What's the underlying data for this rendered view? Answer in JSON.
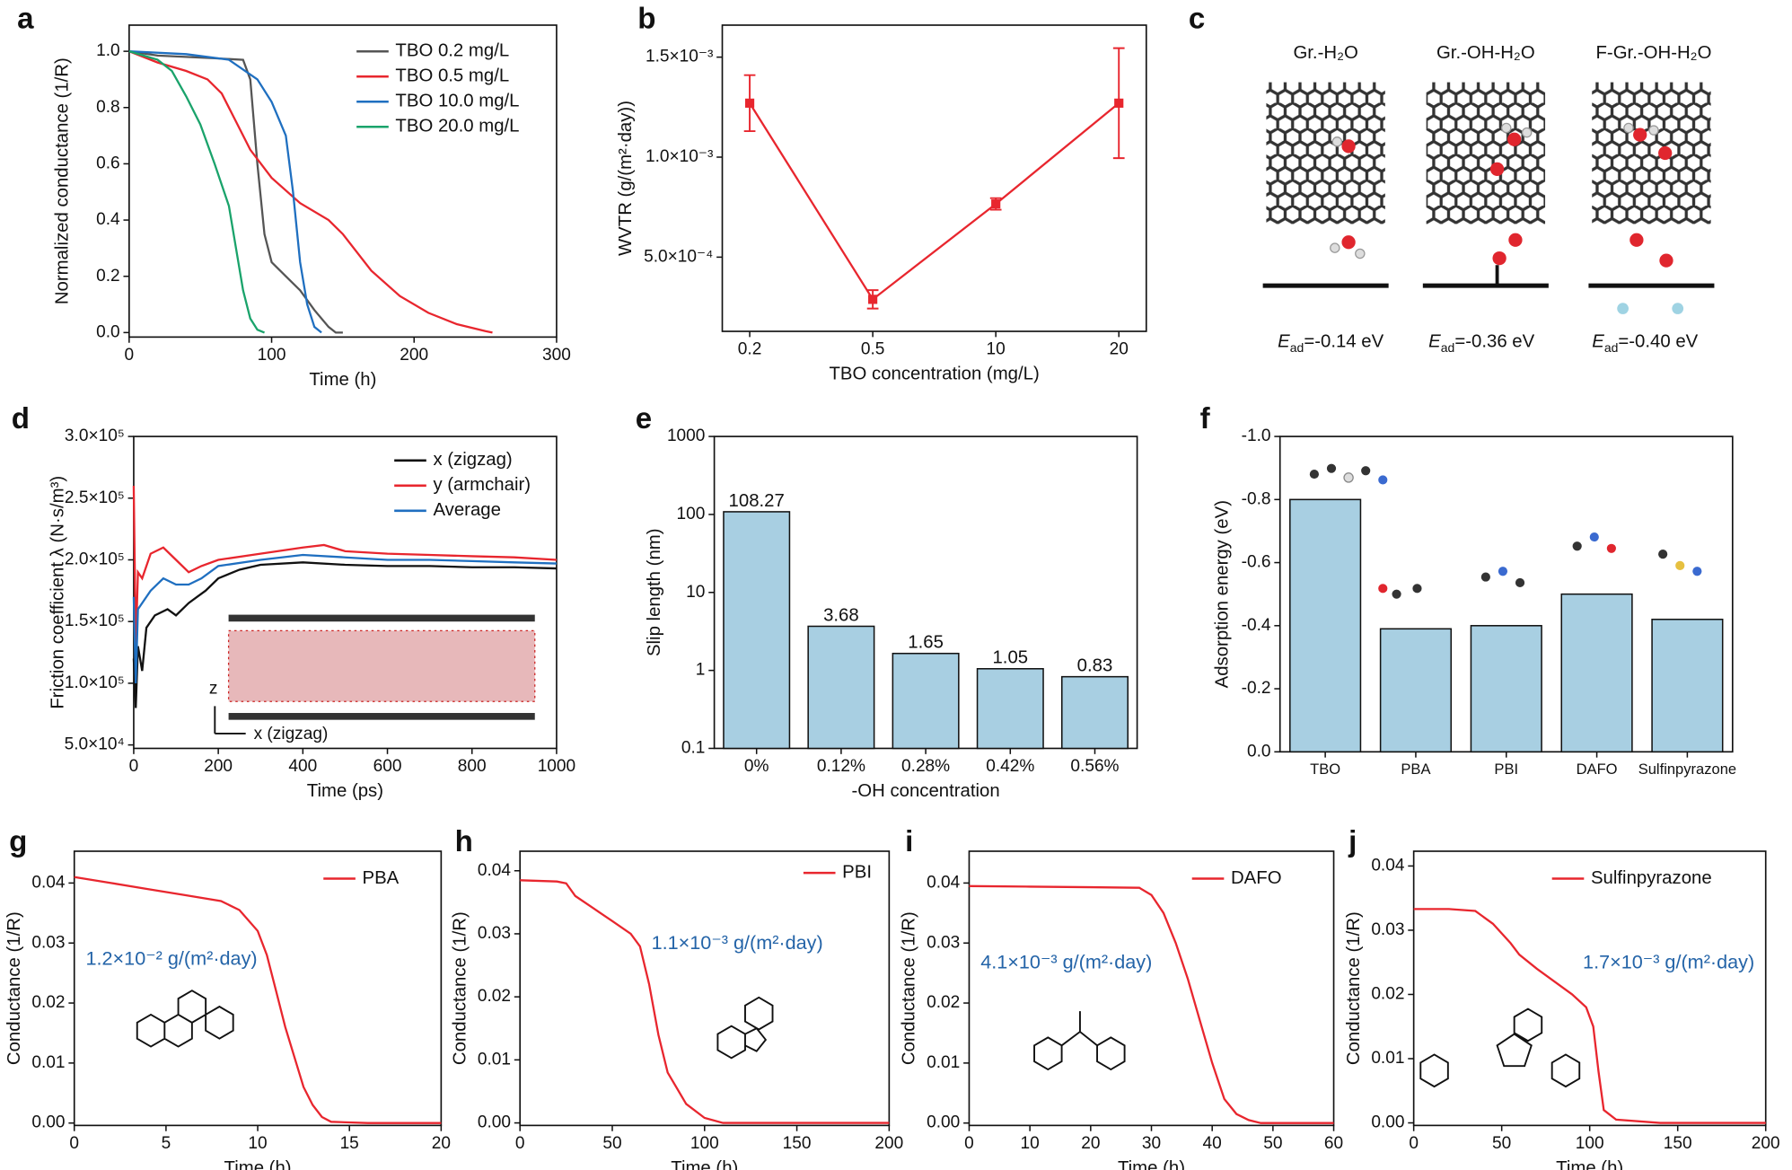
{
  "chart_data": [
    {
      "type": "line",
      "label": "a",
      "xlabel": "Time (h)",
      "ylabel": "Normalized conductance (1/R)",
      "xlim": [
        0,
        300
      ],
      "ylim": [
        -0.016,
        1.093
      ],
      "xticks": [
        0,
        100,
        200,
        300
      ],
      "yticks": [
        {
          "value": 0,
          "label": "0.0"
        },
        0.2,
        0.4,
        0.6,
        0.8,
        {
          "value": 1,
          "label": "1.0"
        }
      ],
      "legend": "upper right",
      "series": [
        {
          "name": "TBO 0.2 mg/L",
          "color": "#555555",
          "x": [
            0,
            20,
            60,
            80,
            85,
            90,
            95,
            100,
            110,
            120,
            130,
            140,
            145,
            150
          ],
          "values": [
            1.0,
            0.985,
            0.975,
            0.97,
            0.9,
            0.6,
            0.35,
            0.25,
            0.2,
            0.15,
            0.08,
            0.02,
            0.0,
            0.0
          ]
        },
        {
          "name": "TBO 0.5 mg/L",
          "color": "#e8262e",
          "x": [
            0,
            20,
            40,
            55,
            65,
            75,
            85,
            100,
            120,
            140,
            150,
            170,
            190,
            210,
            230,
            250,
            255
          ],
          "values": [
            1.0,
            0.96,
            0.93,
            0.9,
            0.85,
            0.75,
            0.65,
            0.55,
            0.46,
            0.4,
            0.35,
            0.22,
            0.13,
            0.07,
            0.03,
            0.005,
            0.0
          ]
        },
        {
          "name": "TBO 10.0 mg/L",
          "color": "#1f6fc0",
          "x": [
            0,
            40,
            70,
            90,
            100,
            110,
            115,
            120,
            125,
            130,
            135
          ],
          "values": [
            1.0,
            0.99,
            0.97,
            0.9,
            0.82,
            0.7,
            0.5,
            0.25,
            0.1,
            0.02,
            0.0
          ]
        },
        {
          "name": "TBO 20.0 mg/L",
          "color": "#1aa36b",
          "x": [
            0,
            20,
            30,
            40,
            50,
            60,
            70,
            75,
            80,
            85,
            90,
            95
          ],
          "values": [
            1.0,
            0.97,
            0.93,
            0.84,
            0.74,
            0.6,
            0.45,
            0.3,
            0.15,
            0.05,
            0.01,
            0.0
          ]
        }
      ]
    },
    {
      "type": "line",
      "label": "b",
      "xlabel": "TBO concentration (mg/L)",
      "ylabel": "WVTR (g/(m²·day))",
      "categories": [
        "0.2",
        "0.5",
        "10",
        "20"
      ],
      "color": "#e8262e",
      "values": [
        0.00127,
        0.000289,
        0.000766,
        0.00127
      ],
      "errors": [
        0.00014,
        4.6e-05,
        2.9e-05,
        0.000275
      ],
      "ylim": [
        0.000129,
        0.00166
      ],
      "yticks": [
        {
          "value": 0.0005,
          "label": "5.0×10⁻⁴"
        },
        {
          "value": 0.001,
          "label": "1.0×10⁻³"
        },
        {
          "value": 0.0015,
          "label": "1.5×10⁻³"
        }
      ]
    },
    {
      "type": "line",
      "label": "d",
      "xlabel": "Time (ps)",
      "ylabel": "Friction coefficient λ (N·s/m³)",
      "xlim": [
        0,
        1000
      ],
      "ylim": [
        47200,
        300000
      ],
      "xticks": [
        0,
        200,
        400,
        600,
        800,
        1000
      ],
      "yticks": [
        {
          "value": 50000,
          "label": "5.0×10⁴"
        },
        {
          "value": 100000,
          "label": "1.0×10⁵"
        },
        {
          "value": 150000,
          "label": "1.5×10⁵"
        },
        {
          "value": 200000,
          "label": "2.0×10⁵"
        },
        {
          "value": 250000,
          "label": "2.5×10⁵"
        },
        {
          "value": 300000,
          "label": "3.0×10⁵"
        }
      ],
      "legend": "upper right",
      "inset_labels": [
        "z",
        "x (zigzag)"
      ],
      "series": [
        {
          "name": "x (zigzag)",
          "color": "#111111",
          "x": [
            0,
            5,
            10,
            20,
            30,
            50,
            80,
            100,
            130,
            150,
            170,
            200,
            250,
            300,
            400,
            500,
            600,
            700,
            800,
            900,
            1000
          ],
          "values": [
            120000,
            80000,
            130000,
            110000,
            145000,
            155000,
            160000,
            155000,
            165000,
            170000,
            175000,
            185000,
            192000,
            196000,
            198000,
            196000,
            195000,
            195000,
            194000,
            194000,
            193000
          ]
        },
        {
          "name": "y (armchair)",
          "color": "#e8262e",
          "x": [
            0,
            5,
            10,
            20,
            40,
            70,
            100,
            130,
            160,
            200,
            300,
            400,
            450,
            500,
            600,
            700,
            800,
            900,
            1000
          ],
          "values": [
            260000,
            130000,
            190000,
            185000,
            205000,
            210000,
            200000,
            190000,
            195000,
            200000,
            205000,
            210000,
            212000,
            207000,
            205000,
            204000,
            203000,
            202000,
            200000
          ]
        },
        {
          "name": "Average",
          "color": "#1f6fc0",
          "x": [
            0,
            5,
            10,
            20,
            40,
            70,
            100,
            130,
            160,
            200,
            300,
            400,
            500,
            600,
            700,
            800,
            900,
            1000
          ],
          "values": [
            170000,
            100000,
            160000,
            165000,
            175000,
            185000,
            180000,
            180000,
            185000,
            195000,
            200000,
            204000,
            202000,
            200000,
            200000,
            199000,
            198000,
            197000
          ]
        }
      ]
    },
    {
      "type": "bar",
      "label": "e",
      "xlabel": "-OH concentration",
      "ylabel": "Slip length (nm)",
      "categories": [
        "0%",
        "0.12%",
        "0.28%",
        "0.42%",
        "0.56%"
      ],
      "values": [
        108.27,
        3.68,
        1.65,
        1.05,
        0.83
      ],
      "color": "#a8cfe2",
      "yscale": "log",
      "ylim": [
        0.1,
        1000
      ],
      "yticks": [
        0.1,
        1,
        10,
        100,
        1000
      ],
      "value_labels_shown": true
    },
    {
      "type": "bar",
      "label": "f",
      "ylabel": "Adsorption energy (eV)",
      "categories": [
        "TBO",
        "PBA",
        "PBI",
        "DAFO",
        "Sulfinpyrazone"
      ],
      "values": [
        -0.8,
        -0.39,
        -0.4,
        -0.5,
        -0.42
      ],
      "color": "#a8cfe2",
      "ylim": [
        0,
        -1
      ],
      "yticks": [
        {
          "value": 0,
          "label": "0.0"
        },
        -0.2,
        -0.4,
        -0.6,
        -0.8,
        {
          "value": -1,
          "label": "-1.0"
        }
      ]
    },
    {
      "type": "line",
      "label": "g",
      "xlabel": "Time (h)",
      "ylabel": "Conductance (1/R)",
      "xlim": [
        0,
        20
      ],
      "ylim": [
        -0.0004,
        0.0453
      ],
      "xticks": [
        0,
        5,
        10,
        15,
        20
      ],
      "yticks": [
        {
          "value": 0,
          "label": "0.00"
        },
        0.01,
        0.02,
        0.03,
        0.04
      ],
      "legend": "upper right",
      "annotation": "1.2×10⁻² g/(m²·day)",
      "series": [
        {
          "name": "PBA",
          "color": "#e8262e",
          "x": [
            0,
            2,
            4,
            6,
            8,
            9,
            10,
            10.5,
            11,
            11.5,
            12,
            12.5,
            13,
            13.5,
            14,
            16,
            20
          ],
          "values": [
            0.041,
            0.04,
            0.039,
            0.038,
            0.037,
            0.0355,
            0.032,
            0.028,
            0.022,
            0.016,
            0.011,
            0.006,
            0.003,
            0.001,
            0.0002,
            0,
            0
          ]
        }
      ]
    },
    {
      "type": "line",
      "label": "h",
      "xlabel": "Time (h)",
      "ylabel": "Conductance (1/R)",
      "xlim": [
        0,
        200
      ],
      "ylim": [
        -0.0004,
        0.0431
      ],
      "xticks": [
        0,
        50,
        100,
        150,
        200
      ],
      "yticks": [
        {
          "value": 0,
          "label": "0.00"
        },
        0.01,
        0.02,
        0.03,
        0.04
      ],
      "legend": "upper right",
      "annotation": "1.1×10⁻³ g/(m²·day)",
      "series": [
        {
          "name": "PBI",
          "color": "#e8262e",
          "x": [
            0,
            20,
            25,
            30,
            40,
            50,
            60,
            65,
            70,
            75,
            80,
            90,
            100,
            110,
            200
          ],
          "values": [
            0.0385,
            0.0383,
            0.038,
            0.036,
            0.034,
            0.032,
            0.03,
            0.028,
            0.022,
            0.014,
            0.008,
            0.003,
            0.0008,
            0,
            0
          ]
        }
      ]
    },
    {
      "type": "line",
      "label": "i",
      "xlabel": "Time (h)",
      "ylabel": "Conductance (1/R)",
      "xlim": [
        0,
        60
      ],
      "ylim": [
        -0.0004,
        0.0453
      ],
      "xticks": [
        0,
        10,
        20,
        30,
        40,
        50,
        60
      ],
      "yticks": [
        {
          "value": 0,
          "label": "0.00"
        },
        0.01,
        0.02,
        0.03,
        0.04
      ],
      "legend": "upper right",
      "annotation": "4.1×10⁻³ g/(m²·day)",
      "series": [
        {
          "name": "DAFO",
          "color": "#e8262e",
          "x": [
            0,
            10,
            20,
            28,
            30,
            32,
            34,
            36,
            38,
            40,
            42,
            44,
            46,
            48,
            60
          ],
          "values": [
            0.0395,
            0.0394,
            0.0393,
            0.0392,
            0.038,
            0.035,
            0.03,
            0.024,
            0.017,
            0.01,
            0.004,
            0.0015,
            0.0005,
            0,
            0
          ]
        }
      ]
    },
    {
      "type": "line",
      "label": "j",
      "xlabel": "Time (h)",
      "ylabel": "Conductance (1/R)",
      "xlim": [
        0,
        200
      ],
      "ylim": [
        -0.0004,
        0.0423
      ],
      "xticks": [
        0,
        50,
        100,
        150,
        200
      ],
      "yticks": [
        {
          "value": 0,
          "label": "0.00"
        },
        0.01,
        0.02,
        0.03,
        0.04
      ],
      "legend": "upper right",
      "annotation": "1.7×10⁻³ g/(m²·day)",
      "series": [
        {
          "name": "Sulfinpyrazone",
          "color": "#e8262e",
          "x": [
            0,
            20,
            35,
            45,
            55,
            60,
            70,
            80,
            90,
            98,
            102,
            105,
            108,
            115,
            140,
            200
          ],
          "values": [
            0.0333,
            0.0333,
            0.033,
            0.031,
            0.028,
            0.0262,
            0.024,
            0.022,
            0.02,
            0.018,
            0.015,
            0.008,
            0.002,
            0.0005,
            0,
            0
          ]
        }
      ]
    }
  ],
  "panel_c": {
    "label": "c",
    "titles": [
      "Gr.-H₂O",
      "Gr.-OH-H₂O",
      "F-Gr.-OH-H₂O"
    ],
    "energies": [
      {
        "symbol": "E",
        "subscript": "ad",
        "value": "=-0.14 eV"
      },
      {
        "symbol": "E",
        "subscript": "ad",
        "value": "=-0.36 eV"
      },
      {
        "symbol": "E",
        "subscript": "ad",
        "value": "=-0.40 eV"
      }
    ]
  }
}
